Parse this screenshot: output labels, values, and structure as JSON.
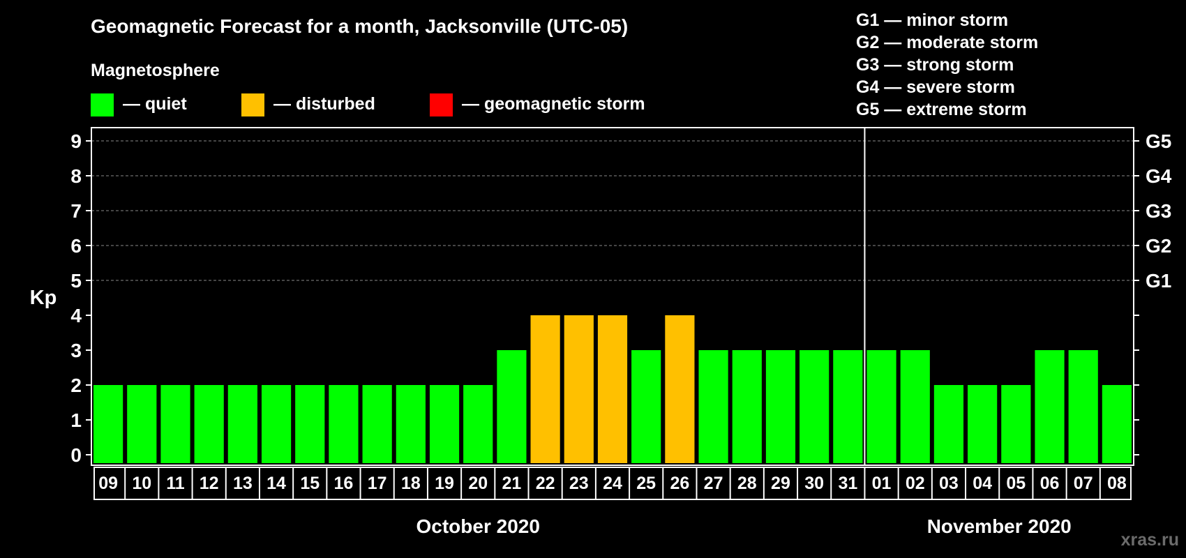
{
  "chart_data": {
    "type": "bar",
    "title": "Geomagnetic Forecast for a month, Jacksonville (UTC-05)",
    "legend_heading": "Magnetosphere",
    "legend": [
      {
        "key": "quiet",
        "label": "— quiet",
        "color": "#00ff00"
      },
      {
        "key": "disturbed",
        "label": "— disturbed",
        "color": "#ffc000"
      },
      {
        "key": "storm",
        "label": "— geomagnetic storm",
        "color": "#ff0000"
      }
    ],
    "storm_scale": [
      "G1 — minor storm",
      "G2 — moderate storm",
      "G3 — strong storm",
      "G4 — severe storm",
      "G5 — extreme storm"
    ],
    "ylabel": "Kp",
    "ylim": [
      0,
      9
    ],
    "yticks": [
      "0",
      "1",
      "2",
      "3",
      "4",
      "5",
      "6",
      "7",
      "8",
      "9"
    ],
    "right_axis_labels": [
      {
        "kp": 5,
        "label": "G1"
      },
      {
        "kp": 6,
        "label": "G2"
      },
      {
        "kp": 7,
        "label": "G3"
      },
      {
        "kp": 8,
        "label": "G4"
      },
      {
        "kp": 9,
        "label": "G5"
      }
    ],
    "categories": [
      "09",
      "10",
      "11",
      "12",
      "13",
      "14",
      "15",
      "16",
      "17",
      "18",
      "19",
      "20",
      "21",
      "22",
      "23",
      "24",
      "25",
      "26",
      "27",
      "28",
      "29",
      "30",
      "31",
      "01",
      "02",
      "03",
      "04",
      "05",
      "06",
      "07",
      "08"
    ],
    "values": [
      2,
      2,
      2,
      2,
      2,
      2,
      2,
      2,
      2,
      2,
      2,
      2,
      3,
      4,
      4,
      4,
      3,
      4,
      3,
      3,
      3,
      3,
      3,
      3,
      3,
      2,
      2,
      2,
      3,
      3,
      2
    ],
    "levels": [
      "quiet",
      "quiet",
      "quiet",
      "quiet",
      "quiet",
      "quiet",
      "quiet",
      "quiet",
      "quiet",
      "quiet",
      "quiet",
      "quiet",
      "quiet",
      "disturbed",
      "disturbed",
      "disturbed",
      "quiet",
      "disturbed",
      "quiet",
      "quiet",
      "quiet",
      "quiet",
      "quiet",
      "quiet",
      "quiet",
      "quiet",
      "quiet",
      "quiet",
      "quiet",
      "quiet",
      "quiet"
    ],
    "months": [
      {
        "label": "October 2020",
        "first_index": 0,
        "last_index": 22
      },
      {
        "label": "November 2020",
        "first_index": 23,
        "last_index": 30
      }
    ],
    "month_divider_after_index": 22,
    "grid_lines_from_kp": 5
  },
  "watermark": "xras.ru"
}
